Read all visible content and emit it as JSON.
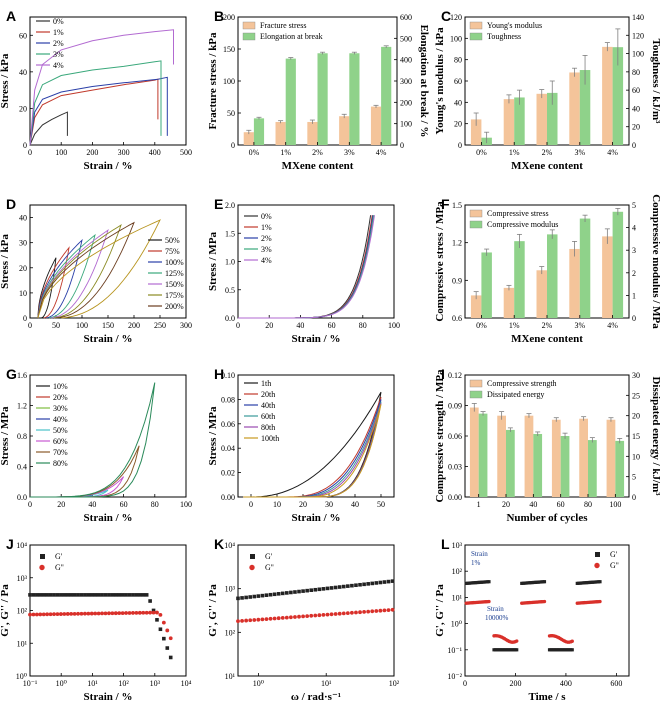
{
  "figure": {
    "colors": {
      "orange": "#f4c49a",
      "green": "#8fd28a",
      "errbar": "#7f7f7f",
      "black": "#222222",
      "red": "#d9302a"
    }
  },
  "chart_data": [
    {
      "panel": "A",
      "type": "line",
      "xlabel": "Strain / %",
      "ylabel": "Stress / kPa",
      "xlim": [
        0,
        500
      ],
      "ylim": [
        0,
        70
      ],
      "xticks": [
        "0",
        "100",
        "200",
        "300",
        "400",
        "500"
      ],
      "yticks": [
        "0",
        "20",
        "40",
        "60"
      ],
      "series": [
        {
          "name": "0%",
          "color": "#333333",
          "points": [
            [
              0,
              0
            ],
            [
              15,
              6
            ],
            [
              40,
              11
            ],
            [
              70,
              14
            ],
            [
              100,
              16.5
            ],
            [
              120,
              18
            ],
            [
              120,
              5
            ]
          ]
        },
        {
          "name": "1%",
          "color": "#c0392b",
          "points": [
            [
              0,
              0
            ],
            [
              15,
              15
            ],
            [
              40,
              22
            ],
            [
              100,
              27
            ],
            [
              200,
              30
            ],
            [
              300,
              33
            ],
            [
              400,
              35.5
            ],
            [
              410,
              36
            ],
            [
              410,
              14
            ]
          ]
        },
        {
          "name": "2%",
          "color": "#2a3fa8",
          "points": [
            [
              0,
              0
            ],
            [
              15,
              18
            ],
            [
              40,
              25
            ],
            [
              100,
              29
            ],
            [
              200,
              32
            ],
            [
              300,
              34
            ],
            [
              410,
              36
            ],
            [
              440,
              37
            ],
            [
              440,
              5
            ]
          ]
        },
        {
          "name": "3%",
          "color": "#3aa87b",
          "points": [
            [
              0,
              0
            ],
            [
              15,
              23
            ],
            [
              40,
              33
            ],
            [
              100,
              38
            ],
            [
              200,
              41
            ],
            [
              300,
              43
            ],
            [
              400,
              45.5
            ],
            [
              420,
              46
            ],
            [
              420,
              5
            ]
          ]
        },
        {
          "name": "4%",
          "color": "#b26ad1",
          "points": [
            [
              0,
              0
            ],
            [
              15,
              30
            ],
            [
              40,
              44
            ],
            [
              100,
              52
            ],
            [
              200,
              57
            ],
            [
              300,
              60
            ],
            [
              400,
              62
            ],
            [
              460,
              63
            ],
            [
              460,
              44
            ]
          ]
        }
      ]
    },
    {
      "panel": "B",
      "type": "bar",
      "xlabel": "MXene content",
      "ylabel": "Fracture stress / kPa",
      "ylabel2": "Elongation at break / %",
      "categories": [
        "0%",
        "1%",
        "2%",
        "3%",
        "4%"
      ],
      "ylim": [
        0,
        200
      ],
      "ylim2": [
        0,
        600
      ],
      "yticks": [
        "0",
        "50",
        "100",
        "150",
        "200"
      ],
      "yticks2": [
        "0",
        "100",
        "200",
        "300",
        "400",
        "500",
        "600"
      ],
      "series": [
        {
          "name": "Fracture stress",
          "axis": "left",
          "values": [
            20,
            36,
            36,
            45,
            60
          ],
          "err": [
            3,
            2,
            3,
            3,
            2
          ]
        },
        {
          "name": "Elongation at break",
          "axis": "right",
          "values": [
            125,
            405,
            430,
            430,
            460
          ],
          "err": [
            5,
            5,
            5,
            5,
            5
          ]
        }
      ]
    },
    {
      "panel": "C",
      "type": "bar",
      "xlabel": "MXene content",
      "ylabel": "Young's modulus / kPa",
      "ylabel2": "Toughness / kJ/m³",
      "categories": [
        "0%",
        "1%",
        "2%",
        "3%",
        "4%"
      ],
      "ylim": [
        0,
        120
      ],
      "ylim2": [
        0,
        140
      ],
      "yticks": [
        "0",
        "20",
        "40",
        "60",
        "80",
        "100",
        "120"
      ],
      "yticks2": [
        "0",
        "20",
        "40",
        "60",
        "80",
        "100",
        "120",
        "140"
      ],
      "series": [
        {
          "name": "Young's modulus",
          "axis": "left",
          "values": [
            24,
            43,
            48,
            68,
            92
          ],
          "err": [
            6,
            4,
            4,
            4,
            4
          ]
        },
        {
          "name": "Toughness",
          "axis": "right",
          "values": [
            8,
            52,
            57,
            82,
            107
          ],
          "err": [
            6,
            8,
            13,
            16,
            20
          ]
        }
      ]
    },
    {
      "panel": "D",
      "type": "line",
      "xlabel": "Strain / %",
      "ylabel": "Stress / kPa",
      "xlim": [
        0,
        300
      ],
      "ylim": [
        0,
        45
      ],
      "xticks": [
        "0",
        "50",
        "100",
        "150",
        "200",
        "250",
        "300"
      ],
      "yticks": [
        "0",
        "10",
        "20",
        "30",
        "40"
      ],
      "series": [
        {
          "name": "50%",
          "color": "#1a1a1a",
          "max": 50,
          "peak": 24
        },
        {
          "name": "75%",
          "color": "#c0392b",
          "max": 75,
          "peak": 28
        },
        {
          "name": "100%",
          "color": "#2a3fa8",
          "max": 100,
          "peak": 31
        },
        {
          "name": "125%",
          "color": "#3aa87b",
          "max": 125,
          "peak": 33
        },
        {
          "name": "150%",
          "color": "#b26ad1",
          "max": 150,
          "peak": 35
        },
        {
          "name": "175%",
          "color": "#8a8a22",
          "max": 175,
          "peak": 37
        },
        {
          "name": "200%",
          "color": "#6b3d1f",
          "max": 200,
          "peak": 38
        },
        {
          "name": "",
          "color": "#b89520",
          "max": 250,
          "peak": 39
        }
      ]
    },
    {
      "panel": "E",
      "type": "line",
      "xlabel": "Strain / %",
      "ylabel": "Stress / MPa",
      "xlim": [
        0,
        100
      ],
      "ylim": [
        0,
        2.0
      ],
      "xticks": [
        "0",
        "20",
        "40",
        "60",
        "80",
        "100"
      ],
      "yticks": [
        "0.0",
        "0.5",
        "1.0",
        "1.5",
        "2.0"
      ],
      "series": [
        {
          "name": "0%",
          "color": "#333333",
          "end": 85
        },
        {
          "name": "1%",
          "color": "#c0392b",
          "end": 86
        },
        {
          "name": "2%",
          "color": "#2a3fa8",
          "end": 86.5
        },
        {
          "name": "3%",
          "color": "#3aa87b",
          "end": 87
        },
        {
          "name": "4%",
          "color": "#b26ad1",
          "end": 87.5
        }
      ]
    },
    {
      "panel": "F",
      "type": "bar",
      "xlabel": "MXene content",
      "ylabel": "Compressive stress / MPa",
      "ylabel2": "Compressive modulus / MPa",
      "categories": [
        "0%",
        "1%",
        "2%",
        "3%",
        "4%"
      ],
      "ylim": [
        0.6,
        1.5
      ],
      "ylim2": [
        0,
        5
      ],
      "yticks": [
        "0.6",
        "0.9",
        "1.2",
        "1.5"
      ],
      "yticks2": [
        "0",
        "1",
        "2",
        "3",
        "4",
        "5"
      ],
      "series": [
        {
          "name": "Compressive stress",
          "axis": "left",
          "values": [
            0.78,
            0.84,
            0.98,
            1.15,
            1.25
          ],
          "err": [
            0.03,
            0.02,
            0.03,
            0.06,
            0.06
          ]
        },
        {
          "name": "Compressive modulus",
          "axis": "right",
          "values": [
            2.9,
            3.4,
            3.7,
            4.4,
            4.7
          ],
          "err": [
            0.15,
            0.3,
            0.2,
            0.15,
            0.15
          ]
        }
      ]
    },
    {
      "panel": "G",
      "type": "line",
      "xlabel": "Strain / %",
      "ylabel": "Stress / MPa",
      "xlim": [
        0,
        100
      ],
      "ylim": [
        0,
        1.6
      ],
      "xticks": [
        "0",
        "20",
        "40",
        "60",
        "80",
        "100"
      ],
      "yticks": [
        "0.0",
        "0.4",
        "0.8",
        "1.2",
        "1.6"
      ],
      "series": [
        {
          "name": "10%",
          "color": "#1a1a1a",
          "max": 10
        },
        {
          "name": "20%",
          "color": "#c0392b",
          "max": 20
        },
        {
          "name": "30%",
          "color": "#7fbf3f",
          "max": 30
        },
        {
          "name": "40%",
          "color": "#2a3fa8",
          "max": 40
        },
        {
          "name": "50%",
          "color": "#49c0c9",
          "max": 50
        },
        {
          "name": "60%",
          "color": "#c95ad1",
          "max": 60
        },
        {
          "name": "70%",
          "color": "#8a5a2a",
          "max": 70
        },
        {
          "name": "80%",
          "color": "#2a8a5a",
          "max": 80
        }
      ]
    },
    {
      "panel": "H",
      "type": "line",
      "xlabel": "Strain / %",
      "ylabel": "Stress / MPa",
      "xlim": [
        -5,
        55
      ],
      "ylim": [
        0,
        0.1
      ],
      "xticks": [
        "0",
        "10",
        "20",
        "30",
        "40",
        "50"
      ],
      "yticks": [
        "0.00",
        "0.02",
        "0.04",
        "0.06",
        "0.08",
        "0.10"
      ],
      "series": [
        {
          "name": "1th",
          "color": "#1a1a1a",
          "peak": 0.086
        },
        {
          "name": "20th",
          "color": "#c0392b",
          "peak": 0.082
        },
        {
          "name": "40th",
          "color": "#2a3fa8",
          "peak": 0.08
        },
        {
          "name": "60th",
          "color": "#3a9a9a",
          "peak": 0.078
        },
        {
          "name": "80th",
          "color": "#9a4ab0",
          "peak": 0.077
        },
        {
          "name": "100th",
          "color": "#c79a20",
          "peak": 0.076
        }
      ]
    },
    {
      "panel": "I",
      "type": "bar",
      "xlabel": "Number of cycles",
      "ylabel": "Compressive strength / MPa",
      "ylabel2": "Dissipated energy / kJ/m³",
      "categories": [
        "1",
        "20",
        "40",
        "60",
        "80",
        "100"
      ],
      "ylim": [
        0,
        0.12
      ],
      "ylim2": [
        0,
        30
      ],
      "yticks": [
        "0.00",
        "0.03",
        "0.06",
        "0.09",
        "0.12"
      ],
      "yticks2": [
        "0",
        "5",
        "10",
        "15",
        "20",
        "25",
        "30"
      ],
      "series": [
        {
          "name": "Compressive strength",
          "axis": "left",
          "values": [
            0.088,
            0.08,
            0.08,
            0.076,
            0.077,
            0.076
          ],
          "err": [
            0.004,
            0.004,
            0.002,
            0.002,
            0.002,
            0.002
          ]
        },
        {
          "name": "Dissipated energy",
          "axis": "right",
          "values": [
            20.5,
            16.5,
            15.5,
            15.0,
            14.0,
            13.8
          ],
          "err": [
            0.5,
            0.5,
            0.5,
            0.7,
            0.6,
            0.6
          ]
        }
      ]
    },
    {
      "panel": "J",
      "type": "scatter",
      "xlabel": "Strain / %",
      "ylabel": "G', G'' / Pa",
      "xscale": "log",
      "yscale": "log",
      "xlim": [
        0.1,
        10000
      ],
      "ylim": [
        1,
        10000
      ],
      "xticks": [
        "10⁻¹",
        "10⁰",
        "10¹",
        "10²",
        "10³",
        "10⁴"
      ],
      "yticks": [
        "10⁰",
        "10¹",
        "10²",
        "10³",
        "10⁴"
      ],
      "series": [
        {
          "name": "G'",
          "color": "#222222",
          "marker": "square",
          "plateau": 300,
          "yield": 600,
          "drop_to": 3,
          "end": 3500
        },
        {
          "name": "G''",
          "color": "#d9302a",
          "marker": "circle",
          "plateau": 75,
          "yield": 1500,
          "drop_to": 9,
          "end": 4000
        }
      ]
    },
    {
      "panel": "K",
      "type": "scatter",
      "xlabel": "ω / rad·s⁻¹",
      "ylabel": "G', G'' / Pa",
      "xscale": "log",
      "yscale": "log",
      "xlim": [
        0.5,
        100
      ],
      "ylim": [
        10,
        10000
      ],
      "xticks": [
        "10⁰",
        "10¹",
        "10²"
      ],
      "yticks": [
        "10¹",
        "10²",
        "10³",
        "10⁴"
      ],
      "series": [
        {
          "name": "G'",
          "color": "#222222",
          "marker": "square",
          "start": 600,
          "end": 1500
        },
        {
          "name": "G''",
          "color": "#d9302a",
          "marker": "circle",
          "start": 180,
          "end": 330
        }
      ]
    },
    {
      "panel": "L",
      "type": "scatter",
      "xlabel": "Time / s",
      "ylabel": "G', G'' / Pa",
      "yscale": "log",
      "xlim": [
        0,
        650
      ],
      "ylim": [
        0.01,
        1000
      ],
      "xticks": [
        "0",
        "200",
        "400",
        "600"
      ],
      "yticks": [
        "10⁻²",
        "10⁻¹",
        "10⁰",
        "10¹",
        "10²",
        "10³"
      ],
      "annotations": [
        "Strain",
        "1%",
        "Strain",
        "10000%"
      ],
      "series": [
        {
          "name": "G'",
          "color": "#222222",
          "marker": "square",
          "high": 40,
          "low": 0.1
        },
        {
          "name": "G''",
          "color": "#d9302a",
          "marker": "circle",
          "high": 7,
          "low": 0.3
        }
      ]
    }
  ]
}
